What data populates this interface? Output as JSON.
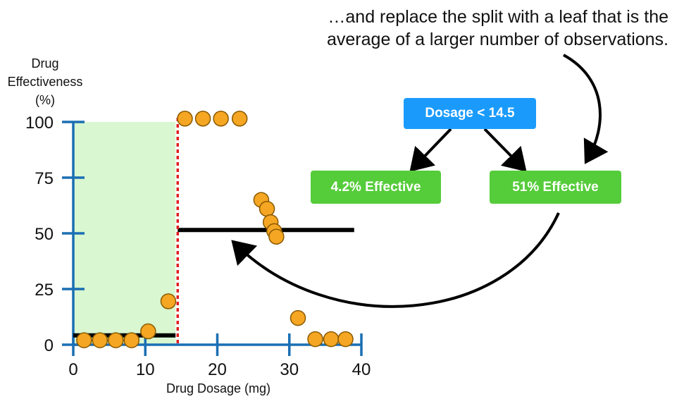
{
  "annotation": {
    "line1": "…and replace the split with a leaf that is the",
    "line2": "average of a larger number of observations."
  },
  "tree": {
    "root": "Dosage < 14.5",
    "left_leaf": "4.2% Effective",
    "right_leaf": "51% Effective"
  },
  "colors": {
    "axis": "#1a6fb3",
    "points_fill": "#f5a623",
    "points_stroke": "#8a5a00",
    "shade": "#d9f7d0",
    "split_line": "#e02020",
    "mean_line": "#000000",
    "root_box": "#1a9bfc",
    "leaf_box": "#55cc3a"
  },
  "chart_data": {
    "type": "scatter",
    "xlabel": "Drug Dosage (mg)",
    "ylabel_lines": [
      "Drug",
      "Effectiveness",
      "(%)"
    ],
    "xlim": [
      0,
      40
    ],
    "ylim": [
      0,
      100
    ],
    "x_ticks": [
      0,
      10,
      20,
      30,
      40
    ],
    "y_ticks": [
      0,
      25,
      50,
      75,
      100
    ],
    "points": [
      {
        "x": 1.5,
        "y": 2
      },
      {
        "x": 3.7,
        "y": 2
      },
      {
        "x": 5.9,
        "y": 2
      },
      {
        "x": 8.1,
        "y": 2
      },
      {
        "x": 10.4,
        "y": 6
      },
      {
        "x": 13.2,
        "y": 19.5
      },
      {
        "x": 15.5,
        "y": 101.5
      },
      {
        "x": 18.0,
        "y": 101.5
      },
      {
        "x": 20.5,
        "y": 101.5
      },
      {
        "x": 23.1,
        "y": 101.5
      },
      {
        "x": 26.1,
        "y": 65
      },
      {
        "x": 26.9,
        "y": 61
      },
      {
        "x": 27.4,
        "y": 55
      },
      {
        "x": 27.9,
        "y": 51
      },
      {
        "x": 28.2,
        "y": 48.5
      },
      {
        "x": 31.2,
        "y": 12
      },
      {
        "x": 33.6,
        "y": 2.5
      },
      {
        "x": 35.8,
        "y": 2.5
      },
      {
        "x": 37.8,
        "y": 2.5
      }
    ],
    "split_x": 14.5,
    "shaded_region": {
      "x0": 0,
      "x1": 14.2,
      "y0": 0,
      "y1": 100
    },
    "segments": [
      {
        "x0": 0,
        "x1": 14.2,
        "y": 4.2
      },
      {
        "x0": 14.5,
        "x1": 39,
        "y": 51.5
      }
    ]
  }
}
